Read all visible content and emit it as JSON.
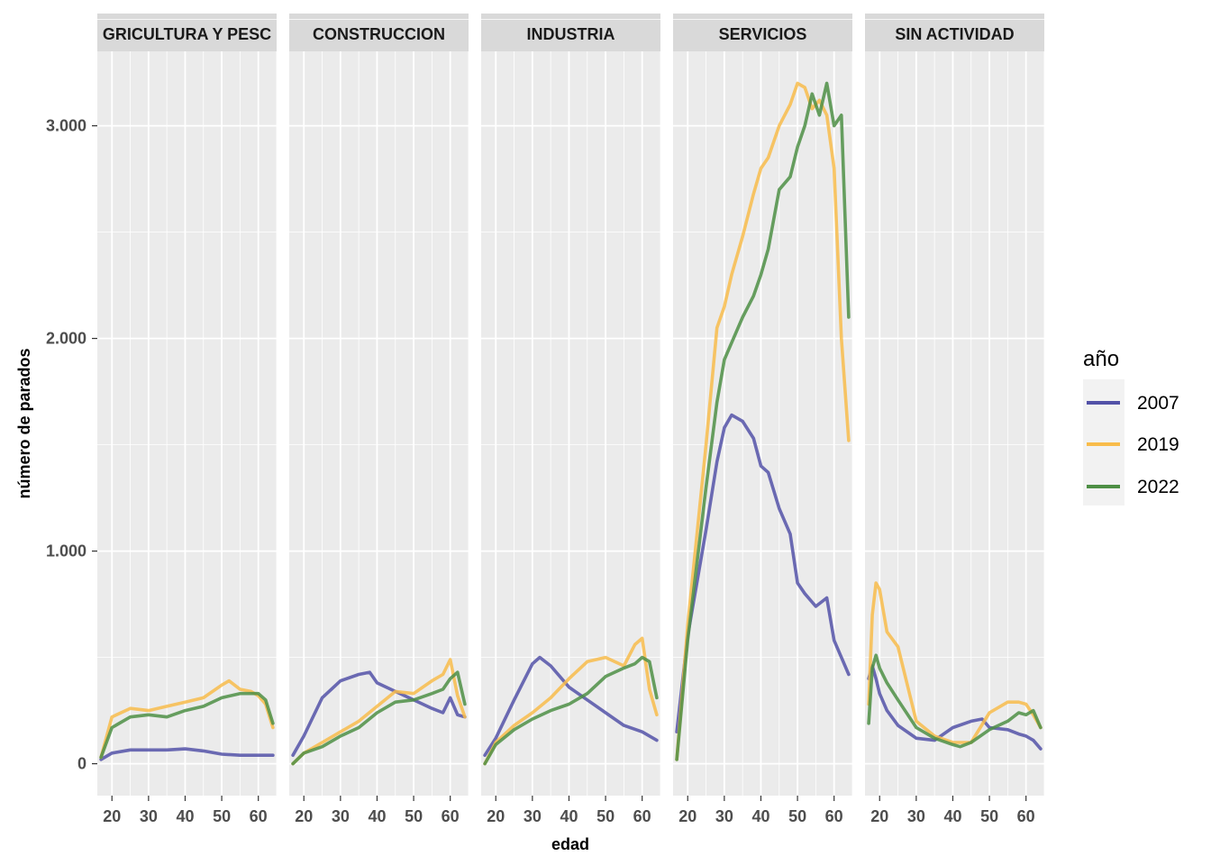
{
  "chart_data": {
    "type": "line",
    "layout": "small-multiples",
    "xlabel": "edad",
    "ylabel": "número de parados",
    "x_ticks": [
      20,
      30,
      40,
      50,
      60
    ],
    "y_ticks": [
      0,
      1000,
      2000,
      3000
    ],
    "y_tick_labels": [
      "0",
      "1.000",
      "2.000",
      "3.000"
    ],
    "xlim": [
      16,
      65
    ],
    "ylim": [
      -150,
      3350
    ],
    "grid": true,
    "legend": {
      "title": "año",
      "placement": "right",
      "entries": [
        "2007",
        "2019",
        "2022"
      ]
    },
    "colors": {
      "2007": "#5352a8",
      "2019": "#f8bc4b",
      "2022": "#4e8f45"
    },
    "facets": [
      {
        "label": "GRICULTURA Y PESC",
        "series": [
          {
            "name": "2007",
            "x": [
              17,
              20,
              25,
              30,
              35,
              40,
              45,
              50,
              55,
              60,
              64
            ],
            "values": [
              20,
              50,
              65,
              65,
              65,
              70,
              60,
              45,
              40,
              40,
              40
            ]
          },
          {
            "name": "2019",
            "x": [
              17,
              20,
              25,
              30,
              35,
              40,
              45,
              50,
              52,
              55,
              58,
              60,
              62,
              64
            ],
            "values": [
              30,
              220,
              260,
              250,
              270,
              290,
              310,
              370,
              390,
              350,
              340,
              320,
              280,
              170
            ]
          },
          {
            "name": "2022",
            "x": [
              17,
              20,
              25,
              30,
              35,
              40,
              45,
              50,
              55,
              60,
              62,
              64
            ],
            "values": [
              30,
              170,
              220,
              230,
              220,
              250,
              270,
              310,
              330,
              330,
              300,
              190
            ]
          }
        ]
      },
      {
        "label": "CONSTRUCCION",
        "series": [
          {
            "name": "2007",
            "x": [
              17,
              20,
              25,
              30,
              35,
              38,
              40,
              45,
              50,
              55,
              58,
              60,
              62,
              64
            ],
            "values": [
              40,
              130,
              310,
              390,
              420,
              430,
              380,
              340,
              300,
              260,
              240,
              310,
              230,
              220
            ]
          },
          {
            "name": "2019",
            "x": [
              17,
              20,
              25,
              30,
              35,
              40,
              45,
              50,
              55,
              58,
              60,
              62,
              64
            ],
            "values": [
              0,
              50,
              100,
              150,
              200,
              270,
              340,
              330,
              390,
              420,
              490,
              320,
              220
            ]
          },
          {
            "name": "2022",
            "x": [
              17,
              20,
              25,
              30,
              35,
              40,
              45,
              50,
              55,
              58,
              60,
              62,
              64
            ],
            "values": [
              0,
              50,
              80,
              130,
              170,
              240,
              290,
              300,
              330,
              350,
              400,
              430,
              280
            ]
          }
        ]
      },
      {
        "label": "INDUSTRIA",
        "series": [
          {
            "name": "2007",
            "x": [
              17,
              20,
              25,
              30,
              32,
              35,
              40,
              45,
              50,
              55,
              60,
              64
            ],
            "values": [
              40,
              120,
              300,
              470,
              500,
              460,
              360,
              300,
              240,
              180,
              150,
              110
            ]
          },
          {
            "name": "2019",
            "x": [
              17,
              20,
              25,
              30,
              35,
              40,
              45,
              50,
              55,
              58,
              60,
              62,
              64
            ],
            "values": [
              0,
              100,
              180,
              240,
              310,
              400,
              480,
              500,
              460,
              560,
              590,
              350,
              230
            ]
          },
          {
            "name": "2022",
            "x": [
              17,
              20,
              25,
              30,
              35,
              40,
              45,
              50,
              55,
              58,
              60,
              62,
              64
            ],
            "values": [
              0,
              90,
              160,
              210,
              250,
              280,
              330,
              410,
              450,
              470,
              500,
              480,
              310
            ]
          }
        ]
      },
      {
        "label": "SERVICIOS",
        "series": [
          {
            "name": "2007",
            "x": [
              17,
              20,
              25,
              28,
              30,
              32,
              35,
              38,
              40,
              42,
              45,
              48,
              50,
              52,
              55,
              58,
              60,
              62,
              64
            ],
            "values": [
              150,
              600,
              1100,
              1420,
              1580,
              1640,
              1610,
              1530,
              1400,
              1370,
              1200,
              1080,
              850,
              800,
              740,
              780,
              580,
              500,
              420
            ]
          },
          {
            "name": "2019",
            "x": [
              17,
              20,
              25,
              28,
              30,
              32,
              35,
              38,
              40,
              42,
              45,
              48,
              50,
              52,
              54,
              56,
              58,
              60,
              62,
              64
            ],
            "values": [
              20,
              650,
              1500,
              2050,
              2150,
              2300,
              2480,
              2680,
              2800,
              2850,
              3000,
              3100,
              3200,
              3180,
              3080,
              3120,
              3050,
              2800,
              2000,
              1520
            ]
          },
          {
            "name": "2022",
            "x": [
              17,
              20,
              25,
              28,
              30,
              32,
              35,
              38,
              40,
              42,
              45,
              48,
              50,
              52,
              54,
              56,
              58,
              60,
              62,
              64
            ],
            "values": [
              20,
              580,
              1300,
              1700,
              1900,
              1980,
              2100,
              2200,
              2300,
              2420,
              2700,
              2760,
              2900,
              3000,
              3150,
              3050,
              3200,
              3000,
              3050,
              2100
            ]
          }
        ]
      },
      {
        "label": "SIN ACTIVIDAD",
        "series": [
          {
            "name": "2007",
            "x": [
              17,
              18,
              19,
              20,
              22,
              25,
              30,
              35,
              40,
              45,
              48,
              50,
              55,
              58,
              60,
              62,
              64
            ],
            "values": [
              400,
              460,
              400,
              330,
              250,
              180,
              120,
              110,
              170,
              200,
              210,
              170,
              160,
              140,
              130,
              110,
              70
            ]
          },
          {
            "name": "2019",
            "x": [
              17,
              18,
              19,
              20,
              22,
              25,
              30,
              35,
              40,
              45,
              50,
              55,
              58,
              60,
              62,
              64
            ],
            "values": [
              280,
              700,
              850,
              820,
              620,
              550,
              200,
              130,
              100,
              100,
              240,
              290,
              290,
              280,
              230,
              170
            ]
          },
          {
            "name": "2022",
            "x": [
              17,
              18,
              19,
              20,
              22,
              25,
              30,
              35,
              40,
              42,
              45,
              50,
              55,
              58,
              60,
              62,
              64
            ],
            "values": [
              190,
              450,
              510,
              450,
              380,
              300,
              170,
              120,
              90,
              80,
              100,
              160,
              200,
              240,
              230,
              250,
              170
            ]
          }
        ]
      }
    ]
  }
}
